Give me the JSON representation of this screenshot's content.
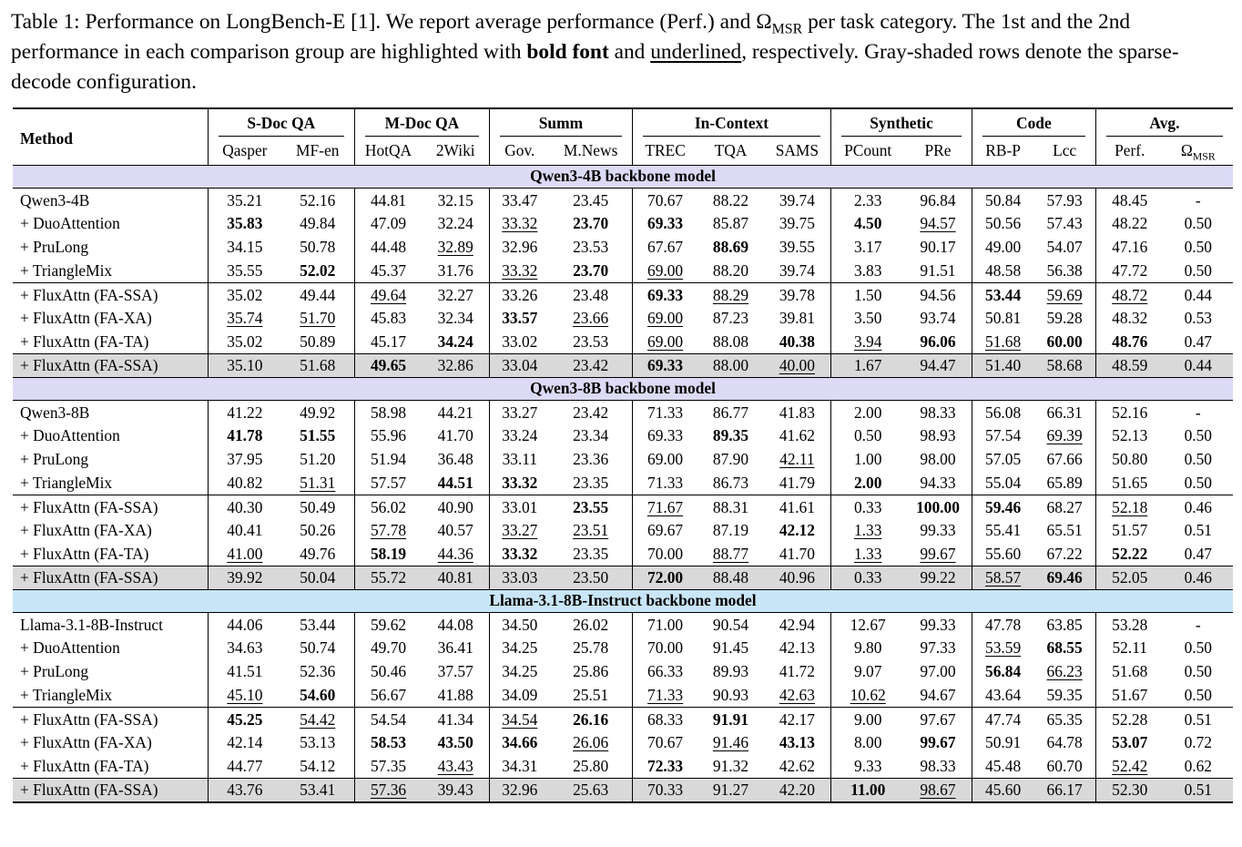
{
  "caption": {
    "segments": [
      {
        "t": "Table 1: Performance on LongBench-E [1]. We report average performance (Perf.) and "
      },
      {
        "t": "Ω"
      },
      {
        "t": "MSR",
        "style": "sub"
      },
      {
        "t": " per task category. The 1st and the 2nd performance in each comparison group are highlighted with "
      },
      {
        "t": "bold font",
        "style": "bold"
      },
      {
        "t": " and "
      },
      {
        "t": "underlined",
        "style": "underline"
      },
      {
        "t": ", respectively. Gray-shaded rows denote the sparse-decode configuration."
      }
    ]
  },
  "table": {
    "method_header": "Method",
    "groups": [
      {
        "label": "S-Doc QA",
        "cols": [
          "Qasper",
          "MF-en"
        ]
      },
      {
        "label": "M-Doc QA",
        "cols": [
          "HotQA",
          "2Wiki"
        ]
      },
      {
        "label": "Summ",
        "cols": [
          "Gov.",
          "M.News"
        ]
      },
      {
        "label": "In-Context",
        "cols": [
          "TREC",
          "TQA",
          "SAMS"
        ]
      },
      {
        "label": "Synthetic",
        "cols": [
          "PCount",
          "PRe"
        ]
      },
      {
        "label": "Code",
        "cols": [
          "RB-P",
          "Lcc"
        ]
      },
      {
        "label": "Avg.",
        "cols": [
          "**Perf.**",
          "Ω_MSR"
        ]
      }
    ],
    "sections": [
      {
        "banner": "Qwen3-4B backbone model",
        "banner_color": "#dcdaf5",
        "blocks": [
          {
            "shaded": false,
            "rows": [
              {
                "method": "Qwen3-4B",
                "values": [
                  "35.21",
                  "52.16",
                  "44.81",
                  "32.15",
                  "33.47",
                  "23.45",
                  "70.67",
                  "88.22",
                  "39.74",
                  "2.33",
                  "96.84",
                  "50.84",
                  "57.93",
                  "48.45",
                  "-"
                ]
              },
              {
                "method": "+ DuoAttention",
                "values": [
                  "**35.83**",
                  "49.84",
                  "47.09",
                  "32.24",
                  "__33.32__",
                  "**23.70**",
                  "**69.33**",
                  "85.87",
                  "39.75",
                  "**4.50**",
                  "__94.57__",
                  "50.56",
                  "57.43",
                  "48.22",
                  "0.50"
                ]
              },
              {
                "method": "+ PruLong",
                "values": [
                  "34.15",
                  "50.78",
                  "44.48",
                  "__32.89__",
                  "32.96",
                  "23.53",
                  "67.67",
                  "**88.69**",
                  "39.55",
                  "3.17",
                  "90.17",
                  "49.00",
                  "54.07",
                  "47.16",
                  "0.50"
                ]
              },
              {
                "method": "+ TriangleMix",
                "values": [
                  "35.55",
                  "**52.02**",
                  "45.37",
                  "31.76",
                  "__33.32__",
                  "**23.70**",
                  "__69.00__",
                  "88.20",
                  "39.74",
                  "3.83",
                  "91.51",
                  "48.58",
                  "56.38",
                  "47.72",
                  "0.50"
                ]
              }
            ]
          },
          {
            "shaded": false,
            "rows": [
              {
                "method": "+ FluxAttn (FA-SSA)",
                "values": [
                  "35.02",
                  "49.44",
                  "__49.64__",
                  "32.27",
                  "33.26",
                  "23.48",
                  "**69.33**",
                  "__88.29__",
                  "39.78",
                  "1.50",
                  "94.56",
                  "**53.44**",
                  "__59.69__",
                  "__48.72__",
                  "0.44"
                ]
              },
              {
                "method": "+ FluxAttn (FA-XA)",
                "values": [
                  "__35.74__",
                  "__51.70__",
                  "45.83",
                  "32.34",
                  "**33.57**",
                  "__23.66__",
                  "__69.00__",
                  "87.23",
                  "39.81",
                  "3.50",
                  "93.74",
                  "50.81",
                  "59.28",
                  "48.32",
                  "0.53"
                ]
              },
              {
                "method": "+ FluxAttn (FA-TA)",
                "values": [
                  "35.02",
                  "50.89",
                  "45.17",
                  "**34.24**",
                  "33.02",
                  "23.53",
                  "__69.00__",
                  "88.08",
                  "**40.38**",
                  "__3.94__",
                  "**96.06**",
                  "__51.68__",
                  "**60.00**",
                  "**48.76**",
                  "0.47"
                ]
              }
            ]
          },
          {
            "shaded": true,
            "rows": [
              {
                "method": "+ FluxAttn (FA-SSA)",
                "values": [
                  "35.10",
                  "51.68",
                  "**49.65**",
                  "32.86",
                  "33.04",
                  "23.42",
                  "**69.33**",
                  "88.00",
                  "__40.00__",
                  "1.67",
                  "94.47",
                  "51.40",
                  "58.68",
                  "48.59",
                  "0.44"
                ]
              }
            ]
          }
        ]
      },
      {
        "banner": "Qwen3-8B backbone model",
        "banner_color": "#dcdaf5",
        "blocks": [
          {
            "shaded": false,
            "rows": [
              {
                "method": "Qwen3-8B",
                "values": [
                  "41.22",
                  "49.92",
                  "58.98",
                  "44.21",
                  "33.27",
                  "23.42",
                  "71.33",
                  "86.77",
                  "41.83",
                  "2.00",
                  "98.33",
                  "56.08",
                  "66.31",
                  "52.16",
                  "-"
                ]
              },
              {
                "method": "+ DuoAttention",
                "values": [
                  "**41.78**",
                  "**51.55**",
                  "55.96",
                  "41.70",
                  "33.24",
                  "23.34",
                  "69.33",
                  "**89.35**",
                  "41.62",
                  "0.50",
                  "98.93",
                  "57.54",
                  "__69.39__",
                  "52.13",
                  "0.50"
                ]
              },
              {
                "method": "+ PruLong",
                "values": [
                  "37.95",
                  "51.20",
                  "51.94",
                  "36.48",
                  "33.11",
                  "23.36",
                  "69.00",
                  "87.90",
                  "__42.11__",
                  "1.00",
                  "98.00",
                  "57.05",
                  "67.66",
                  "50.80",
                  "0.50"
                ]
              },
              {
                "method": "+ TriangleMix",
                "values": [
                  "40.82",
                  "__51.31__",
                  "57.57",
                  "**44.51**",
                  "**33.32**",
                  "23.35",
                  "71.33",
                  "86.73",
                  "41.79",
                  "**2.00**",
                  "94.33",
                  "55.04",
                  "65.89",
                  "51.65",
                  "0.50"
                ]
              }
            ]
          },
          {
            "shaded": false,
            "rows": [
              {
                "method": "+ FluxAttn (FA-SSA)",
                "values": [
                  "40.30",
                  "50.49",
                  "56.02",
                  "40.90",
                  "33.01",
                  "**23.55**",
                  "__71.67__",
                  "88.31",
                  "41.61",
                  "0.33",
                  "**100.00**",
                  "**59.46**",
                  "68.27",
                  "__52.18__",
                  "0.46"
                ]
              },
              {
                "method": "+ FluxAttn (FA-XA)",
                "values": [
                  "40.41",
                  "50.26",
                  "__57.78__",
                  "40.57",
                  "__33.27__",
                  "__23.51__",
                  "69.67",
                  "87.19",
                  "**42.12**",
                  "__1.33__",
                  "99.33",
                  "55.41",
                  "65.51",
                  "51.57",
                  "0.51"
                ]
              },
              {
                "method": "+ FluxAttn (FA-TA)",
                "values": [
                  "__41.00__",
                  "49.76",
                  "**58.19**",
                  "__44.36__",
                  "**33.32**",
                  "23.35",
                  "70.00",
                  "__88.77__",
                  "41.70",
                  "__1.33__",
                  "__99.67__",
                  "55.60",
                  "67.22",
                  "**52.22**",
                  "0.47"
                ]
              }
            ]
          },
          {
            "shaded": true,
            "rows": [
              {
                "method": "+ FluxAttn (FA-SSA)",
                "values": [
                  "39.92",
                  "50.04",
                  "55.72",
                  "40.81",
                  "33.03",
                  "23.50",
                  "**72.00**",
                  "88.48",
                  "40.96",
                  "0.33",
                  "99.22",
                  "__58.57__",
                  "**69.46**",
                  "52.05",
                  "0.46"
                ]
              }
            ]
          }
        ]
      },
      {
        "banner": "Llama-3.1-8B-Instruct backbone model",
        "banner_color": "#c9e6f8",
        "blocks": [
          {
            "shaded": false,
            "rows": [
              {
                "method": "Llama-3.1-8B-Instruct",
                "values": [
                  "44.06",
                  "53.44",
                  "59.62",
                  "44.08",
                  "34.50",
                  "26.02",
                  "71.00",
                  "90.54",
                  "42.94",
                  "12.67",
                  "99.33",
                  "47.78",
                  "63.85",
                  "53.28",
                  "-"
                ]
              },
              {
                "method": "+ DuoAttention",
                "values": [
                  "34.63",
                  "50.74",
                  "49.70",
                  "36.41",
                  "34.25",
                  "25.78",
                  "70.00",
                  "91.45",
                  "42.13",
                  "9.80",
                  "97.33",
                  "__53.59__",
                  "**68.55**",
                  "52.11",
                  "0.50"
                ]
              },
              {
                "method": "+ PruLong",
                "values": [
                  "41.51",
                  "52.36",
                  "50.46",
                  "37.57",
                  "34.25",
                  "25.86",
                  "66.33",
                  "89.93",
                  "41.72",
                  "9.07",
                  "97.00",
                  "**56.84**",
                  "__66.23__",
                  "51.68",
                  "0.50"
                ]
              },
              {
                "method": "+ TriangleMix",
                "values": [
                  "__45.10__",
                  "**54.60**",
                  "56.67",
                  "41.88",
                  "34.09",
                  "25.51",
                  "__71.33__",
                  "90.93",
                  "__42.63__",
                  "__10.62__",
                  "94.67",
                  "43.64",
                  "59.35",
                  "51.67",
                  "0.50"
                ]
              }
            ]
          },
          {
            "shaded": false,
            "rows": [
              {
                "method": "+ FluxAttn (FA-SSA)",
                "values": [
                  "**45.25**",
                  "__54.42__",
                  "54.54",
                  "41.34",
                  "__34.54__",
                  "**26.16**",
                  "68.33",
                  "**91.91**",
                  "42.17",
                  "9.00",
                  "97.67",
                  "47.74",
                  "65.35",
                  "52.28",
                  "0.51"
                ]
              },
              {
                "method": "+ FluxAttn (FA-XA)",
                "values": [
                  "42.14",
                  "53.13",
                  "**58.53**",
                  "**43.50**",
                  "**34.66**",
                  "__26.06__",
                  "70.67",
                  "__91.46__",
                  "**43.13**",
                  "8.00",
                  "**99.67**",
                  "50.91",
                  "64.78",
                  "**53.07**",
                  "0.72"
                ]
              },
              {
                "method": "+ FluxAttn (FA-TA)",
                "values": [
                  "44.77",
                  "54.12",
                  "57.35",
                  "__43.43__",
                  "34.31",
                  "25.80",
                  "**72.33**",
                  "91.32",
                  "42.62",
                  "9.33",
                  "98.33",
                  "45.48",
                  "60.70",
                  "__52.42__",
                  "0.62"
                ]
              }
            ]
          },
          {
            "shaded": true,
            "rows": [
              {
                "method": "+ FluxAttn (FA-SSA)",
                "values": [
                  "43.76",
                  "53.41",
                  "__57.36__",
                  "39.43",
                  "32.96",
                  "25.63",
                  "70.33",
                  "91.27",
                  "42.20",
                  "**11.00**",
                  "__98.67__",
                  "45.60",
                  "66.17",
                  "52.30",
                  "0.51"
                ]
              }
            ]
          }
        ]
      }
    ]
  }
}
